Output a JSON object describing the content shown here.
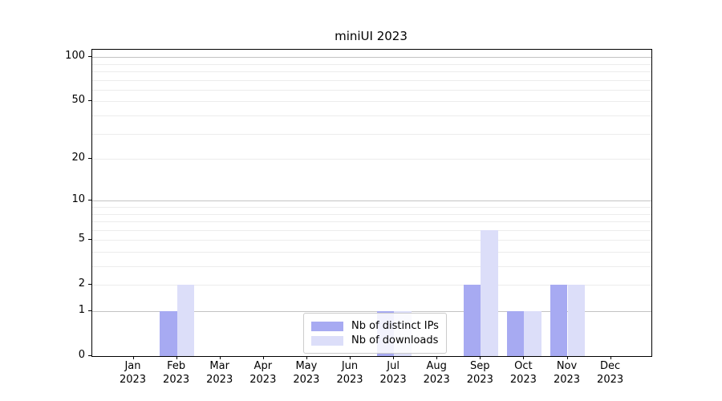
{
  "title": "miniUI 2023",
  "colors": {
    "ips_bar": "#a7aaf2",
    "downloads_bar": "#dcdef9",
    "major_grid": "#c3c3c3",
    "minor_grid": "#ececec",
    "axis": "#000000",
    "legend_border": "#cccccc"
  },
  "legend": {
    "items": [
      {
        "label": "Nb of distinct IPs",
        "series": "ips"
      },
      {
        "label": "Nb of downloads",
        "series": "downloads"
      }
    ]
  },
  "axes": {
    "yticks": [
      0,
      1,
      2,
      5,
      10,
      20,
      50,
      100
    ],
    "gridlines_major": [
      1,
      10,
      100
    ],
    "gridlines_minor": [
      2,
      3,
      4,
      5,
      6,
      7,
      8,
      9,
      20,
      30,
      40,
      50,
      60,
      70,
      80,
      90
    ],
    "month_labels": [
      "Jan",
      "Feb",
      "Mar",
      "Apr",
      "May",
      "Jun",
      "Jul",
      "Aug",
      "Sep",
      "Oct",
      "Nov",
      "Dec"
    ],
    "year_label": "2023"
  },
  "chart_data": {
    "type": "bar",
    "title": "miniUI 2023",
    "categories": [
      "Jan 2023",
      "Feb 2023",
      "Mar 2023",
      "Apr 2023",
      "May 2023",
      "Jun 2023",
      "Jul 2023",
      "Aug 2023",
      "Sep 2023",
      "Oct 2023",
      "Nov 2023",
      "Dec 2023"
    ],
    "series": [
      {
        "name": "Nb of distinct IPs",
        "color": "#a7aaf2",
        "values": [
          0,
          1,
          0,
          0,
          0,
          0,
          1,
          0,
          2,
          1,
          2,
          0
        ]
      },
      {
        "name": "Nb of downloads",
        "color": "#dcdef9",
        "values": [
          0,
          2,
          0,
          0,
          0,
          0,
          1,
          0,
          6,
          1,
          2,
          0
        ]
      }
    ],
    "xlabel": "",
    "ylabel": "",
    "yscale": "log1p",
    "yticks": [
      0,
      1,
      2,
      5,
      10,
      20,
      50,
      100
    ],
    "ylim": [
      0,
      113
    ],
    "grid": true,
    "legend_position": "lower center inside"
  }
}
